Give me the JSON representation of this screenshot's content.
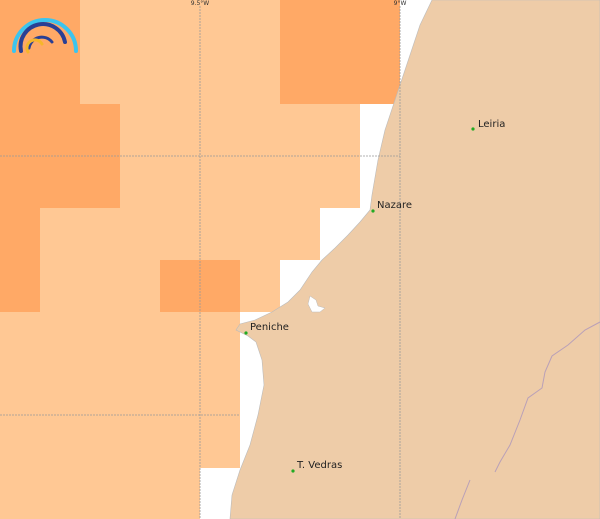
{
  "map": {
    "colors": {
      "sea": "#ffffff",
      "land": "#eecca8",
      "cell_light": "#ffc894",
      "cell_dark": "#ffa966",
      "graticule": "#999999",
      "city_dot": "#22aa22"
    },
    "graticule_labels": [
      "9.5°W",
      "9°W"
    ],
    "cities": [
      {
        "name": "Leiria"
      },
      {
        "name": "Nazare"
      },
      {
        "name": "Peniche"
      },
      {
        "name": "T. Vedras"
      }
    ],
    "logo": {
      "icon": "rainbow-arcs-logo"
    }
  }
}
